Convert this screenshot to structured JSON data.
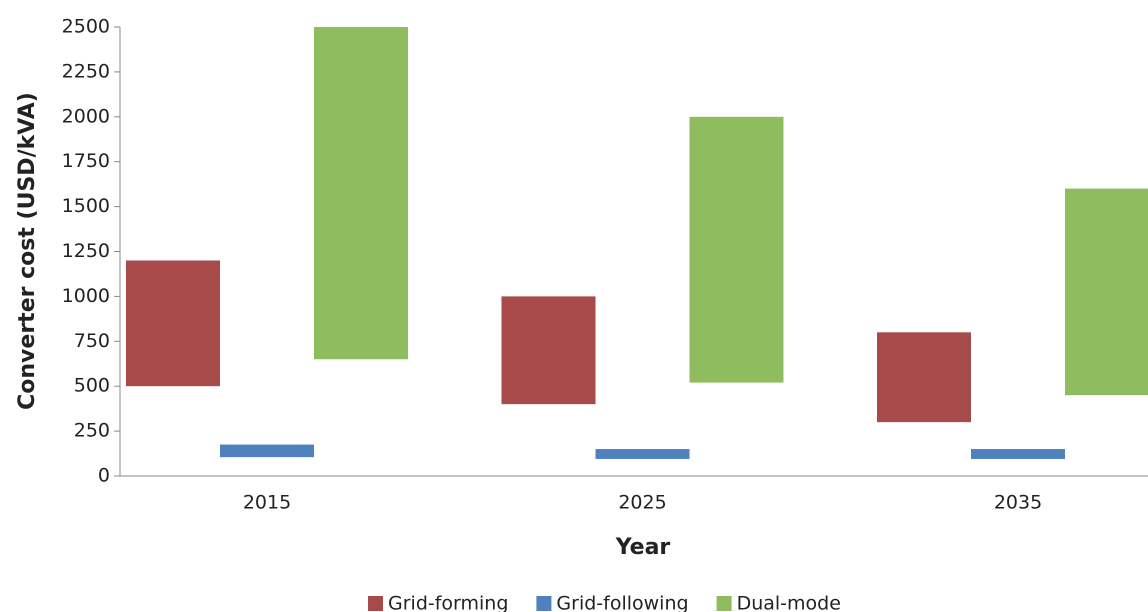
{
  "chart_data": {
    "type": "floating-bar",
    "x_label": "Year",
    "y_label": "Converter cost (USD/kVA)",
    "categories": [
      "2015",
      "2025",
      "2035"
    ],
    "series": [
      {
        "name": "Grid-forming",
        "color": "#a84a4a",
        "low": [
          500,
          400,
          300
        ],
        "high": [
          1200,
          1000,
          800
        ]
      },
      {
        "name": "Grid-following",
        "color": "#4f81bd",
        "low": [
          105,
          95,
          95
        ],
        "high": [
          175,
          150,
          150
        ]
      },
      {
        "name": "Dual-mode",
        "color": "#8fbc5f",
        "low": [
          650,
          520,
          450
        ],
        "high": [
          2500,
          2000,
          1600
        ]
      }
    ],
    "ylim": [
      0,
      2500
    ],
    "yticks": [
      0,
      250,
      500,
      750,
      1000,
      1250,
      1500,
      1750,
      2000,
      2250,
      2500
    ],
    "grid": false,
    "legend": "bottom"
  }
}
